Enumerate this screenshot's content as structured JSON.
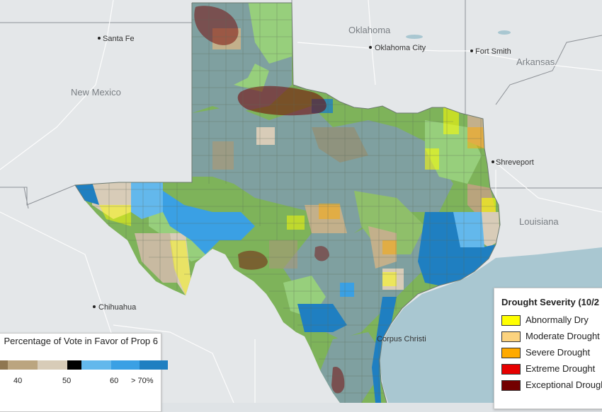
{
  "map": {
    "places": [
      {
        "name": "Santa Fe",
        "kind": "city"
      },
      {
        "name": "Oklahoma",
        "kind": "region"
      },
      {
        "name": "Oklahoma City",
        "kind": "city"
      },
      {
        "name": "Fort Smith",
        "kind": "city"
      },
      {
        "name": "Arkansas",
        "kind": "region"
      },
      {
        "name": "New Mexico",
        "kind": "region"
      },
      {
        "name": "Shreveport",
        "kind": "city"
      },
      {
        "name": "Louisiana",
        "kind": "region"
      },
      {
        "name": "Chihuahua",
        "kind": "city"
      },
      {
        "name": "Corpus Christi",
        "kind": "city"
      }
    ]
  },
  "drought_legend": {
    "title": "Drought Severity (10/2",
    "items": [
      {
        "label": "Abnormally Dry",
        "color": "#ffff00"
      },
      {
        "label": "Moderate Drought",
        "color": "#fcd37f"
      },
      {
        "label": "Severe Drought",
        "color": "#ffaa00"
      },
      {
        "label": "Extreme Drought",
        "color": "#e60000"
      },
      {
        "label": "Exceptional Drought",
        "color": "#730000"
      }
    ]
  },
  "vote_legend": {
    "title": "Percentage of Vote in Favor of Prop 6",
    "colors": [
      "#8f7751",
      "#bba57f",
      "#d8ccb8",
      "#000000",
      "#63b8ec",
      "#3aa0e4",
      "#1f7fc1"
    ],
    "ticks": [
      "40",
      "50",
      "60",
      "> 70%"
    ]
  },
  "colors": {
    "land": "#e3e6e8",
    "water": "#a8c6d0",
    "county_green": "#7eb35a",
    "county_blue_gray": "#7fa0a0",
    "county_light_green": "#97cf7c",
    "county_tan": "#c3b08b"
  }
}
